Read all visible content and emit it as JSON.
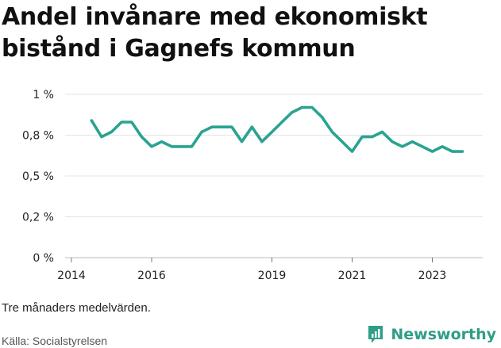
{
  "title": "Andel invånare med ekonomiskt bistånd i Gagnefs kommun",
  "note": "Tre månaders medelvärden.",
  "source": "Källa: Socialstyrelsen",
  "brand": {
    "name": "Newsworthy",
    "icon": "newsworthy-logo-icon",
    "color": "#2f9e86"
  },
  "chart_data": {
    "type": "line",
    "title": "Andel invånare med ekonomiskt bistånd i Gagnefs kommun",
    "xlabel": "",
    "ylabel": "",
    "x_ticks": [
      "2014",
      "2016",
      "2019",
      "2021",
      "2023"
    ],
    "y_ticks": [
      "0 %",
      "0,2 %",
      "0,5 %",
      "0,8 %",
      "1 %"
    ],
    "ylim": [
      0,
      1
    ],
    "grid": true,
    "line_color": "#2aa38f",
    "series": [
      {
        "x": [
          "2014-07",
          "2014-10",
          "2015-01",
          "2015-04",
          "2015-07",
          "2015-10",
          "2016-01",
          "2016-04",
          "2016-07",
          "2016-10",
          "2017-01",
          "2017-04",
          "2017-07",
          "2017-10",
          "2018-01",
          "2018-04",
          "2018-07",
          "2018-10",
          "2019-01",
          "2019-04",
          "2019-07",
          "2019-10",
          "2020-01",
          "2020-04",
          "2020-07",
          "2020-10",
          "2021-01",
          "2021-04",
          "2021-07",
          "2021-10",
          "2022-01",
          "2022-04",
          "2022-07",
          "2022-10",
          "2023-01",
          "2023-04",
          "2023-07",
          "2023-10"
        ],
        "y": [
          0.84,
          0.74,
          0.77,
          0.83,
          0.83,
          0.74,
          0.68,
          0.71,
          0.68,
          0.68,
          0.68,
          0.77,
          0.8,
          0.8,
          0.8,
          0.71,
          0.8,
          0.71,
          0.77,
          0.83,
          0.89,
          0.92,
          0.92,
          0.86,
          0.77,
          0.71,
          0.65,
          0.74,
          0.74,
          0.77,
          0.71,
          0.68,
          0.71,
          0.68,
          0.65,
          0.68,
          0.65,
          0.65
        ]
      }
    ]
  }
}
